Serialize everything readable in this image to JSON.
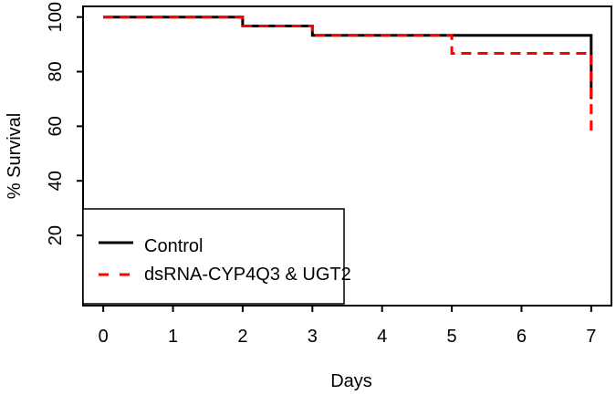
{
  "figure": {
    "background_color": "#ffffff",
    "foreground_color": "#000000",
    "accent_color": "#ff0000"
  },
  "chart_data": {
    "type": "line",
    "variant": "kaplan-meier-step-survival",
    "title": "",
    "xlabel": "Days",
    "ylabel": "% Survival",
    "x_ticks": [
      0,
      1,
      2,
      3,
      4,
      5,
      6,
      7
    ],
    "y_ticks": [
      20,
      40,
      60,
      80,
      100
    ],
    "xlim": [
      -0.29,
      7.29
    ],
    "ylim": [
      -5.7,
      103.9
    ],
    "grid": false,
    "series": [
      {
        "name": "Control",
        "color": "#000000",
        "style": "solid",
        "line_width": 3,
        "points": [
          [
            0,
            100
          ],
          [
            2,
            100
          ],
          [
            2,
            96.7
          ],
          [
            3,
            96.7
          ],
          [
            3,
            93.3
          ],
          [
            7,
            93.3
          ],
          [
            7,
            70
          ]
        ]
      },
      {
        "name": "dsRNA-CYP4Q3 & UGT2",
        "color": "#ff0000",
        "style": "dashed",
        "line_width": 3,
        "points": [
          [
            0,
            100
          ],
          [
            2,
            100
          ],
          [
            2,
            96.7
          ],
          [
            3,
            96.7
          ],
          [
            3,
            93.3
          ],
          [
            5,
            93.3
          ],
          [
            5,
            86.7
          ],
          [
            7,
            86.7
          ],
          [
            7,
            57
          ]
        ]
      }
    ],
    "legend": {
      "position": "bottom-left",
      "entries": [
        {
          "label": "Control",
          "color": "#000000",
          "style": "solid"
        },
        {
          "label": "dsRNA-CYP4Q3 & UGT2",
          "color": "#ff0000",
          "style": "dashed"
        }
      ]
    }
  }
}
